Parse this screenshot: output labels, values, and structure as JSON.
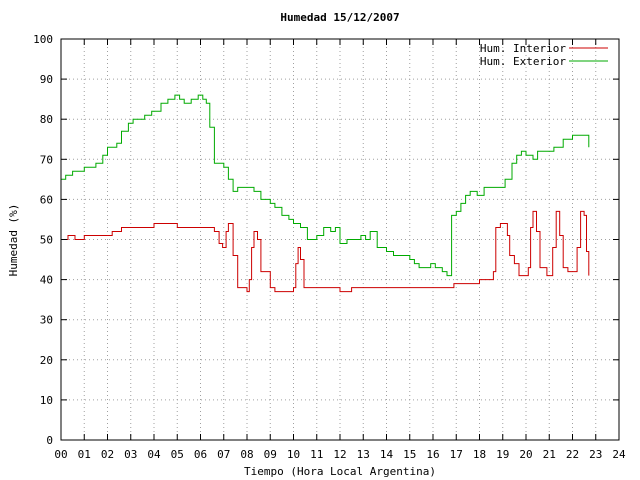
{
  "chart_data": {
    "type": "line",
    "title": "Humedad 15/12/2007",
    "xlabel": "Tiempo (Hora Local Argentina)",
    "ylabel": "Humedad (%)",
    "xlim": [
      0,
      24
    ],
    "ylim": [
      0,
      100
    ],
    "xticks": [
      0,
      1,
      2,
      3,
      4,
      5,
      6,
      7,
      8,
      9,
      10,
      11,
      12,
      13,
      14,
      15,
      16,
      17,
      18,
      19,
      20,
      21,
      22,
      23,
      24
    ],
    "xtick_labels": [
      "00",
      "01",
      "02",
      "03",
      "04",
      "05",
      "06",
      "07",
      "08",
      "09",
      "10",
      "11",
      "12",
      "13",
      "14",
      "15",
      "16",
      "17",
      "18",
      "19",
      "20",
      "21",
      "22",
      "23",
      "24"
    ],
    "yticks": [
      0,
      10,
      20,
      30,
      40,
      50,
      60,
      70,
      80,
      90,
      100
    ],
    "ytick_labels": [
      "0",
      "10",
      "20",
      "30",
      "40",
      "50",
      "60",
      "70",
      "80",
      "90",
      "100"
    ],
    "grid": true,
    "legend_position": "top-right",
    "series": [
      {
        "name": "Hum. Interior",
        "color": "#cc0000",
        "x": [
          0.0,
          0.3,
          0.6,
          1.0,
          1.4,
          1.9,
          2.2,
          2.6,
          3.0,
          3.5,
          4.0,
          4.5,
          5.0,
          5.5,
          6.0,
          6.5,
          6.6,
          6.8,
          6.95,
          7.1,
          7.2,
          7.4,
          7.6,
          8.0,
          8.1,
          8.2,
          8.3,
          8.45,
          8.6,
          8.8,
          9.0,
          9.2,
          9.5,
          9.8,
          10.0,
          10.1,
          10.2,
          10.3,
          10.45,
          10.6,
          10.9,
          11.5,
          12.0,
          12.5,
          13.0,
          13.5,
          14.0,
          14.5,
          15.0,
          15.5,
          16.0,
          16.5,
          16.9,
          17.5,
          18.0,
          18.5,
          18.6,
          18.7,
          18.9,
          19.2,
          19.3,
          19.5,
          19.7,
          19.9,
          20.1,
          20.2,
          20.3,
          20.45,
          20.6,
          20.9,
          21.0,
          21.15,
          21.3,
          21.45,
          21.6,
          21.8,
          22.1,
          22.2,
          22.35,
          22.5,
          22.6,
          22.7
        ],
        "values": [
          50,
          51,
          50,
          51,
          51,
          51,
          52,
          53,
          53,
          53,
          54,
          54,
          53,
          53,
          53,
          53,
          52,
          49,
          48,
          52,
          54,
          46,
          38,
          37,
          40,
          48,
          52,
          50,
          42,
          42,
          38,
          37,
          37,
          37,
          38,
          44,
          48,
          45,
          38,
          38,
          38,
          38,
          37,
          38,
          38,
          38,
          38,
          38,
          38,
          38,
          38,
          38,
          39,
          39,
          40,
          40,
          42,
          53,
          54,
          51,
          46,
          44,
          41,
          41,
          43,
          53,
          57,
          52,
          43,
          41,
          41,
          48,
          57,
          51,
          43,
          42,
          42,
          48,
          57,
          56,
          47,
          41
        ]
      },
      {
        "name": "Hum. Exterior",
        "color": "#00aa00",
        "x": [
          0.0,
          0.2,
          0.5,
          0.8,
          1.0,
          1.3,
          1.5,
          1.8,
          2.0,
          2.2,
          2.4,
          2.6,
          2.9,
          3.1,
          3.3,
          3.6,
          3.9,
          4.1,
          4.3,
          4.6,
          4.9,
          5.1,
          5.3,
          5.6,
          5.9,
          6.1,
          6.25,
          6.4,
          6.6,
          6.8,
          7.0,
          7.2,
          7.4,
          7.6,
          8.0,
          8.3,
          8.6,
          9.0,
          9.2,
          9.5,
          9.8,
          10.0,
          10.3,
          10.6,
          11.0,
          11.3,
          11.6,
          11.8,
          12.0,
          12.3,
          12.6,
          12.9,
          13.1,
          13.3,
          13.6,
          14.0,
          14.3,
          14.6,
          15.0,
          15.2,
          15.4,
          15.6,
          15.9,
          16.1,
          16.4,
          16.6,
          16.8,
          17.0,
          17.2,
          17.4,
          17.6,
          17.9,
          18.2,
          18.5,
          18.8,
          19.1,
          19.4,
          19.6,
          19.8,
          20.0,
          20.3,
          20.5,
          20.8,
          21.2,
          21.6,
          22.0,
          22.4,
          22.7
        ],
        "values": [
          65,
          66,
          67,
          67,
          68,
          68,
          69,
          71,
          73,
          73,
          74,
          77,
          79,
          80,
          80,
          81,
          82,
          82,
          84,
          85,
          86,
          85,
          84,
          85,
          86,
          85,
          84,
          78,
          69,
          69,
          68,
          65,
          62,
          63,
          63,
          62,
          60,
          59,
          58,
          56,
          55,
          54,
          53,
          50,
          51,
          53,
          52,
          53,
          49,
          50,
          50,
          51,
          50,
          52,
          48,
          47,
          46,
          46,
          45,
          44,
          43,
          43,
          44,
          43,
          42,
          41,
          56,
          57,
          59,
          61,
          62,
          61,
          63,
          63,
          63,
          65,
          69,
          71,
          72,
          71,
          70,
          72,
          72,
          73,
          75,
          76,
          76,
          73
        ]
      }
    ]
  }
}
